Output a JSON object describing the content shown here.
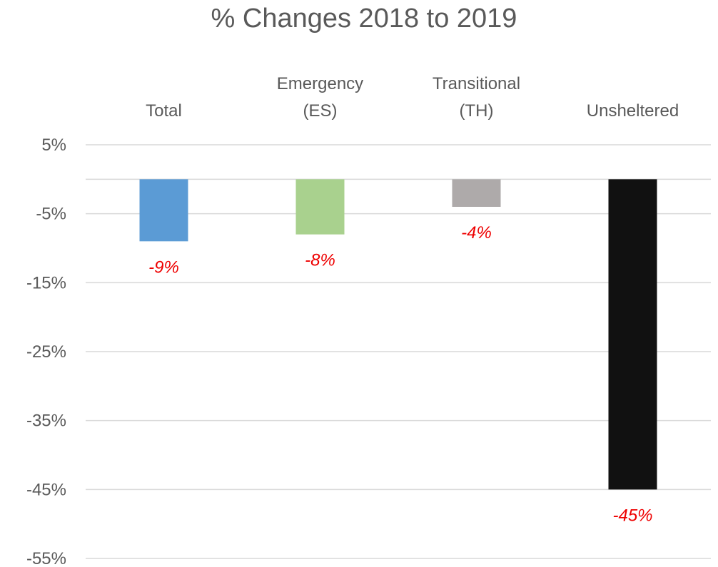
{
  "chart_data": {
    "type": "bar",
    "title": "% Changes 2018 to 2019",
    "categories": [
      [
        "Total"
      ],
      [
        "Emergency",
        "(ES)"
      ],
      [
        "Transitional",
        "(TH)"
      ],
      [
        "Unsheltered"
      ]
    ],
    "values": [
      -9,
      -8,
      -4,
      -45
    ],
    "data_labels": [
      "-9%",
      "-8%",
      "-4%",
      "-45%"
    ],
    "bar_colors": [
      "#5b9bd5",
      "#a9d18e",
      "#aeaaaa",
      "#111111"
    ],
    "label_color": "#ee0000",
    "ylim": [
      -55,
      5
    ],
    "yticks": [
      5,
      -5,
      -15,
      -25,
      -35,
      -45,
      -55
    ],
    "ytick_labels": [
      "5%",
      "-5%",
      "-15%",
      "-25%",
      "-35%",
      "-45%",
      "-55%"
    ],
    "grid": true,
    "legend": false,
    "category_axis_position": "top"
  }
}
